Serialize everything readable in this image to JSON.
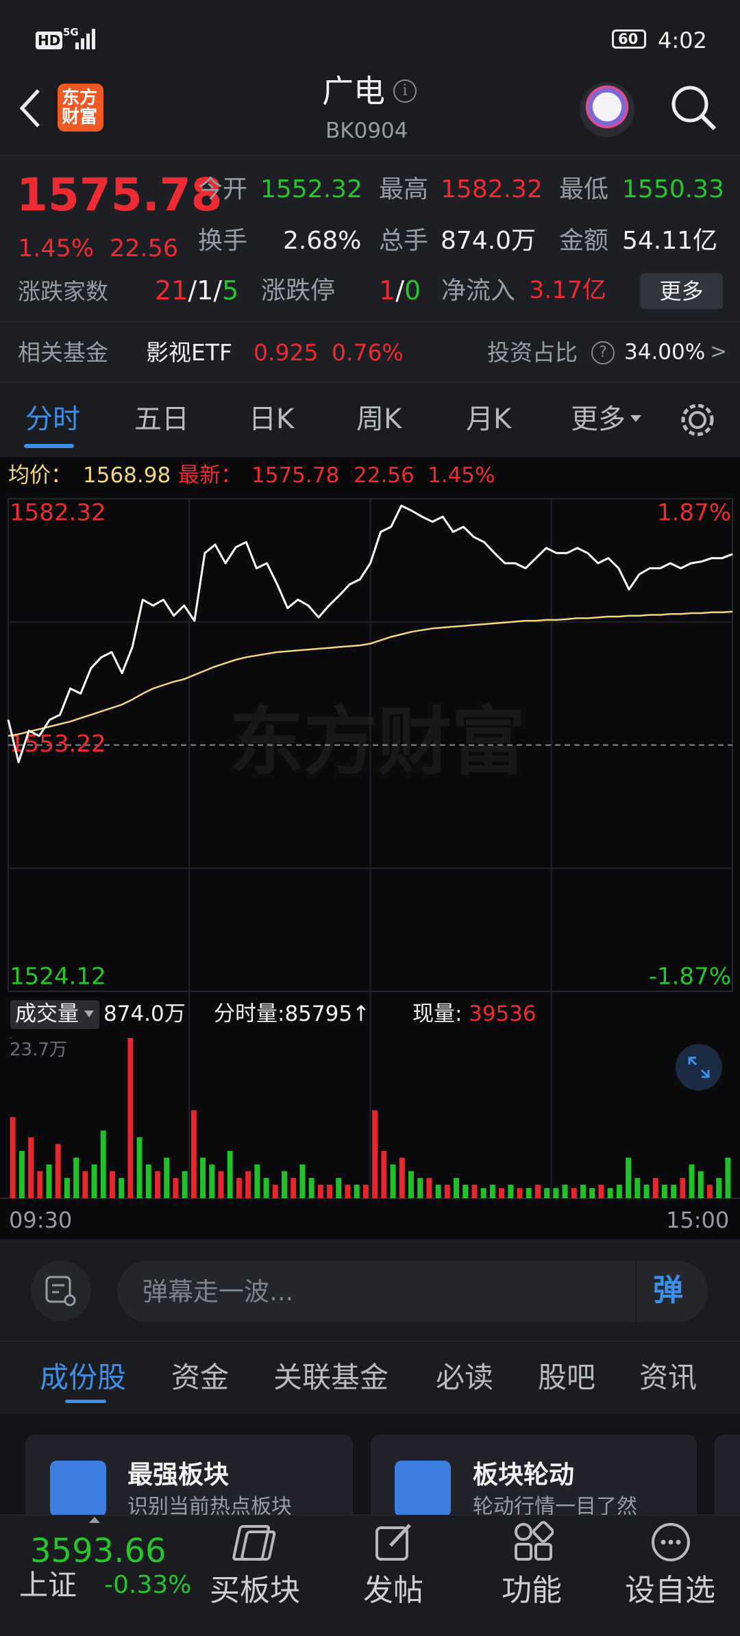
{
  "status_bar": {
    "hd": "HD",
    "network": "5G",
    "battery": "60",
    "time": "4:02"
  },
  "header": {
    "logo": [
      "东方",
      "财富"
    ],
    "title": "广电",
    "code": "BK0904"
  },
  "quote": {
    "price": "1575.78",
    "change_pct": "1.45%",
    "change": "22.56",
    "fields": [
      {
        "label": "今开",
        "value": "1552.32"
      },
      {
        "label": "最高",
        "value": "1582.32"
      },
      {
        "label": "最低",
        "value": "1550.33"
      },
      {
        "label": "换手",
        "value": "2.68%"
      },
      {
        "label": "总手",
        "value": "874.0万"
      },
      {
        "label": "金额",
        "value": "54.11亿"
      }
    ],
    "breadth_label": "涨跌家数",
    "breadth": [
      "21",
      "1",
      "5"
    ],
    "sep": "/",
    "limit_label": "涨跌停",
    "limit": [
      "1",
      "0"
    ],
    "inflow_label": "净流入",
    "inflow": "3.17亿",
    "more": "更多"
  },
  "fund": {
    "label": "相关基金",
    "name": "影视ETF",
    "price": "0.925",
    "change": "0.76%",
    "share_label": "投资占比",
    "share": "34.00%",
    "arrow": ">"
  },
  "tabs": [
    "分时",
    "五日",
    "日K",
    "周K",
    "月K",
    "更多"
  ],
  "info": {
    "avg_label": "均价：",
    "avg": "1568.98",
    "last_label": "最新：",
    "last": "1575.78",
    "change": "22.56",
    "change_pct": "1.45%"
  },
  "watermark": "东方财富",
  "volume_header": {
    "label": "成交量",
    "total": "874.0万",
    "minute": "分时量:85795↑",
    "now_label": "现量:",
    "now": "39536"
  },
  "time_labels": [
    "09:30",
    "15:00"
  ],
  "chart_data": [
    {
      "type": "line",
      "ylim": [
        1524.12,
        1582.32
      ],
      "yticks": [
        1582.32,
        1553.22,
        1524.12
      ],
      "y2lim": [
        -1.87,
        1.87
      ],
      "y2ticks": [
        {
          "value": 1.87,
          "label": "1.87%"
        },
        {
          "value": -1.87,
          "label": "-1.87%"
        }
      ],
      "series": [
        {
          "color": "#ffffff",
          "values": [
            1556.2,
            1551.2,
            1554.9,
            1554.3,
            1556.2,
            1556.8,
            1559.9,
            1559.3,
            1562.3,
            1563.6,
            1564.2,
            1561.7,
            1564.8,
            1570.4,
            1569.7,
            1570.4,
            1568.5,
            1569.7,
            1567.9,
            1575.9,
            1576.9,
            1574.7,
            1576.6,
            1577.2,
            1574.1,
            1574.7,
            1572.2,
            1569.4,
            1570.4,
            1569.7,
            1568.3,
            1569.7,
            1570.9,
            1572.2,
            1572.8,
            1574.7,
            1578.4,
            1579.0,
            1581.5,
            1580.9,
            1580.2,
            1579.6,
            1580.2,
            1578.4,
            1579.0,
            1577.8,
            1577.2,
            1575.9,
            1574.7,
            1574.7,
            1574.1,
            1575.3,
            1576.5,
            1575.9,
            1575.9,
            1576.5,
            1575.9,
            1574.7,
            1575.3,
            1574.1,
            1571.6,
            1573.4,
            1574.1,
            1574.1,
            1574.7,
            1574.1,
            1574.7,
            1574.9,
            1575.3,
            1575.3,
            1575.78
          ]
        },
        {
          "color": "#f3d77e",
          "values": [
            1554.3,
            1554.5,
            1554.8,
            1555.1,
            1555.4,
            1555.7,
            1556.0,
            1556.4,
            1556.8,
            1557.2,
            1557.6,
            1558.0,
            1558.6,
            1559.3,
            1559.9,
            1560.3,
            1560.7,
            1561.0,
            1561.5,
            1562.0,
            1562.5,
            1562.9,
            1563.3,
            1563.6,
            1563.8,
            1564.0,
            1564.2,
            1564.3,
            1564.4,
            1564.5,
            1564.6,
            1564.7,
            1564.8,
            1564.9,
            1565.0,
            1565.2,
            1565.6,
            1566.0,
            1566.3,
            1566.6,
            1566.8,
            1567.0,
            1567.1,
            1567.2,
            1567.3,
            1567.4,
            1567.5,
            1567.6,
            1567.7,
            1567.8,
            1567.9,
            1567.9,
            1568.0,
            1568.0,
            1568.1,
            1568.2,
            1568.2,
            1568.3,
            1568.4,
            1568.4,
            1568.5,
            1568.5,
            1568.6,
            1568.6,
            1568.7,
            1568.7,
            1568.8,
            1568.8,
            1568.9,
            1568.9,
            1568.98
          ]
        }
      ]
    },
    {
      "type": "bar",
      "ylim": [
        0,
        23.7
      ],
      "yticks": [
        {
          "value": 23.7,
          "label": "23.7万"
        }
      ],
      "values": [
        12,
        7,
        9,
        4,
        5,
        8,
        3,
        6,
        4,
        5,
        10,
        4,
        3,
        23.7,
        9,
        5,
        4,
        6,
        3,
        4,
        13,
        6,
        5,
        4,
        7,
        3,
        4,
        5,
        3,
        2,
        4,
        3,
        5,
        3,
        2,
        2,
        3,
        2,
        2,
        2,
        13,
        7,
        5,
        6,
        4,
        3,
        3,
        2,
        2,
        3,
        2,
        2,
        1.5,
        2,
        1.5,
        2,
        1.5,
        1.5,
        2,
        1.5,
        1.5,
        2,
        1.5,
        2,
        1.5,
        2,
        1.5,
        2,
        6,
        3,
        2,
        3,
        2,
        2,
        3,
        5,
        4,
        2,
        3,
        6
      ],
      "colors": [
        "#e8262e",
        "#22c02a",
        "#e8262e",
        "#e8262e",
        "#22c02a",
        "#e8262e",
        "#22c02a",
        "#22c02a",
        "#e8262e",
        "#22c02a",
        "#22c02a",
        "#e8262e",
        "#22c02a",
        "#e8262e",
        "#22c02a",
        "#22c02a",
        "#e8262e",
        "#22c02a",
        "#e8262e",
        "#22c02a",
        "#e8262e",
        "#22c02a",
        "#22c02a",
        "#e8262e",
        "#22c02a",
        "#e8262e",
        "#e8262e",
        "#22c02a",
        "#22c02a",
        "#e8262e",
        "#22c02a",
        "#e8262e",
        "#22c02a",
        "#22c02a",
        "#e8262e",
        "#e8262e",
        "#22c02a",
        "#e8262e",
        "#22c02a",
        "#e8262e",
        "#e8262e",
        "#e8262e",
        "#22c02a",
        "#e8262e",
        "#22c02a",
        "#22c02a",
        "#e8262e",
        "#22c02a",
        "#e8262e",
        "#22c02a",
        "#22c02a",
        "#e8262e",
        "#22c02a",
        "#22c02a",
        "#e8262e",
        "#22c02a",
        "#e8262e",
        "#22c02a",
        "#e8262e",
        "#22c02a",
        "#22c02a",
        "#22c02a",
        "#e8262e",
        "#22c02a",
        "#22c02a",
        "#e8262e",
        "#22c02a",
        "#22c02a",
        "#22c02a",
        "#22c02a",
        "#22c02a",
        "#e8262e",
        "#22c02a",
        "#22c02a",
        "#e8262e",
        "#22c02a",
        "#22c02a",
        "#e8262e",
        "#22c02a",
        "#22c02a"
      ]
    }
  ],
  "comment": {
    "placeholder": "弹幕走一波...",
    "button": "弹"
  },
  "section_tabs": [
    "成份股",
    "资金",
    "关联基金",
    "必读",
    "股吧",
    "资讯"
  ],
  "cards": [
    {
      "title": "最强板块",
      "subtitle": "识别当前热点板块"
    },
    {
      "title": "板块轮动",
      "subtitle": "轮动行情一目了然"
    }
  ],
  "bottom_nav": {
    "index_value": "3593.66",
    "index_name": "上证",
    "index_change": "-0.33%",
    "items": [
      "买板块",
      "发帖",
      "功能",
      "设自选"
    ]
  }
}
